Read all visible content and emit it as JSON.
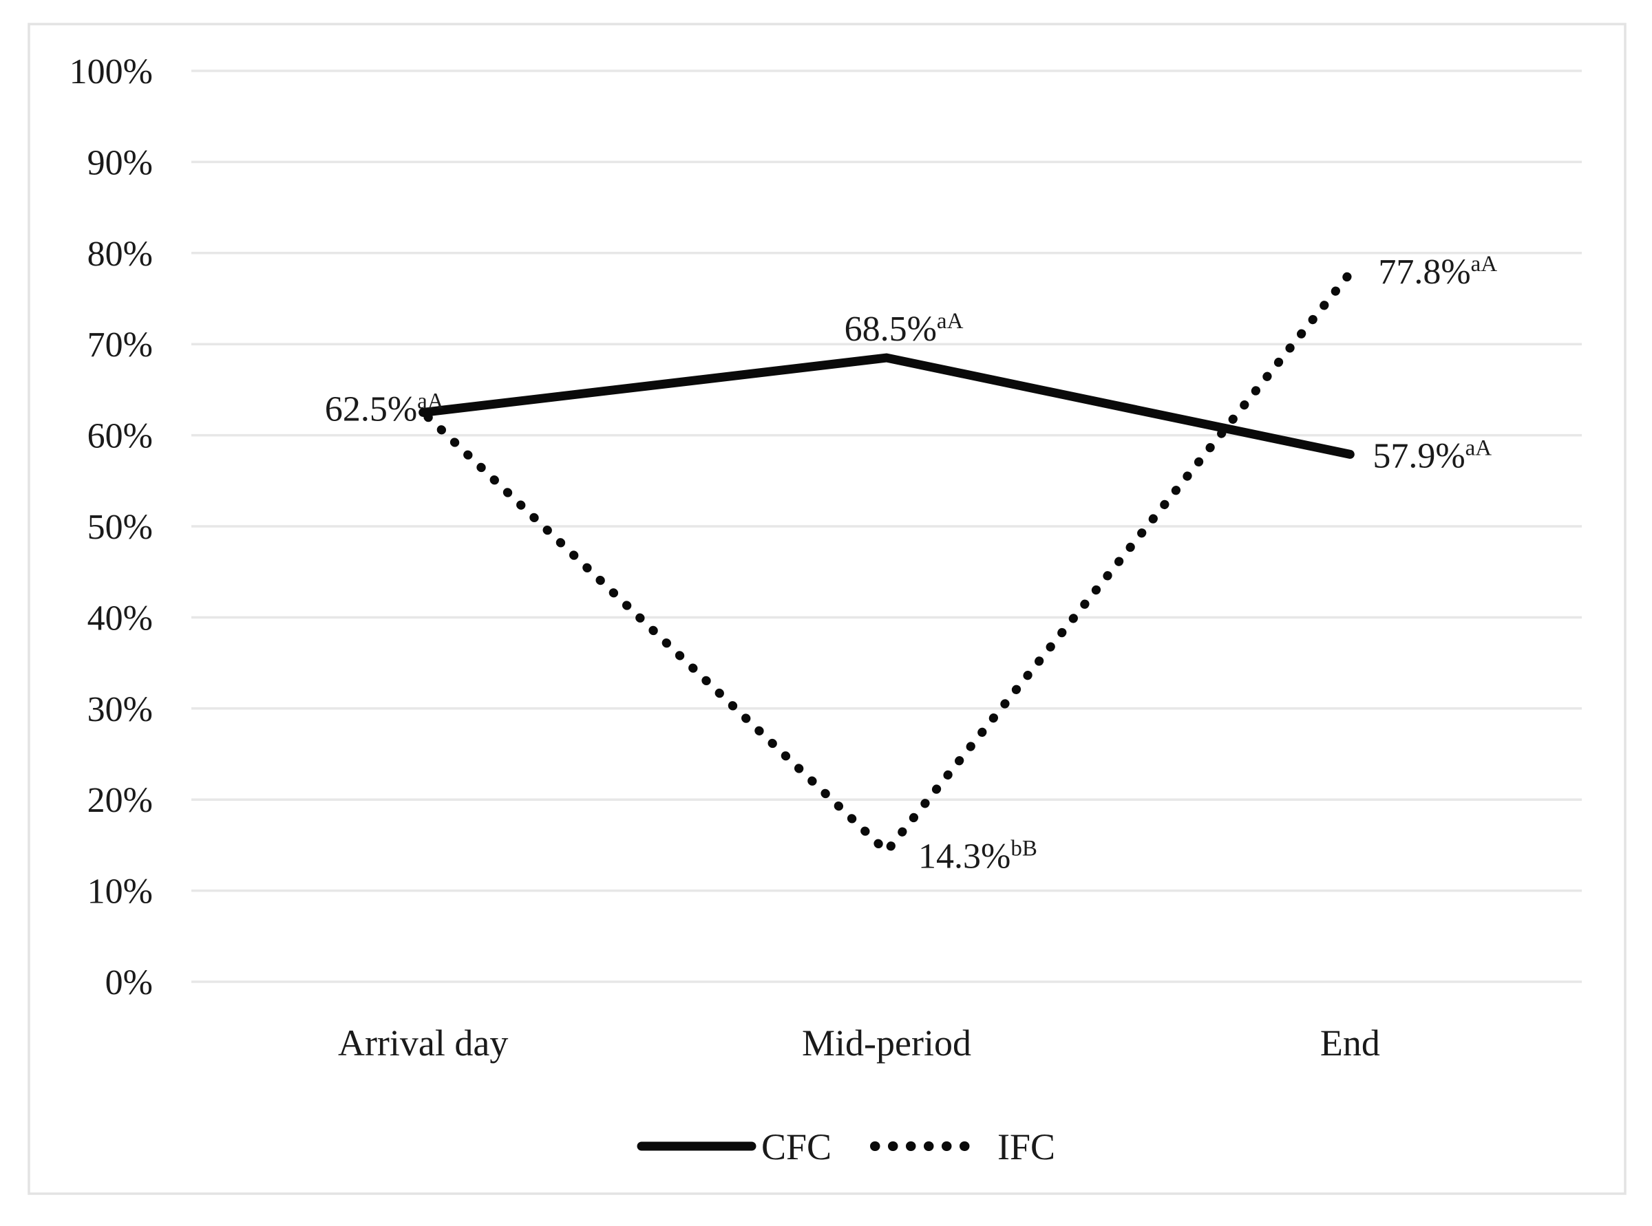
{
  "figure": {
    "background": "#ffffff",
    "border_color": "#e3e3e3"
  },
  "chart_data": {
    "type": "line",
    "categories": [
      "Arrival day",
      "Mid-period",
      "End"
    ],
    "series": [
      {
        "name": "CFC",
        "style": "solid",
        "values": [
          62.5,
          68.5,
          57.9
        ],
        "labels": [
          {
            "text": "62.5%",
            "sup": "aA"
          },
          {
            "text": "68.5%",
            "sup": "aA"
          },
          {
            "text": "57.9%",
            "sup": "aA"
          }
        ]
      },
      {
        "name": "IFC",
        "style": "dotted",
        "values": [
          62.5,
          14.3,
          77.8
        ],
        "labels": [
          null,
          {
            "text": "14.3%",
            "sup": "bB"
          },
          {
            "text": "77.8%",
            "sup": "aA"
          }
        ]
      }
    ],
    "title": "",
    "xlabel": "",
    "ylabel": "",
    "ylim": [
      0,
      100
    ],
    "ytick_step": 10,
    "ytick_labels": [
      "0%",
      "10%",
      "20%",
      "30%",
      "40%",
      "50%",
      "60%",
      "70%",
      "80%",
      "90%",
      "100%"
    ],
    "grid": true,
    "grid_color": "#e7e7e7",
    "line_color": "#0a0a0a",
    "legend_position": "bottom"
  },
  "legend": {
    "items": [
      {
        "label": "CFC",
        "style": "solid"
      },
      {
        "label": "IFC",
        "style": "dotted"
      }
    ]
  }
}
